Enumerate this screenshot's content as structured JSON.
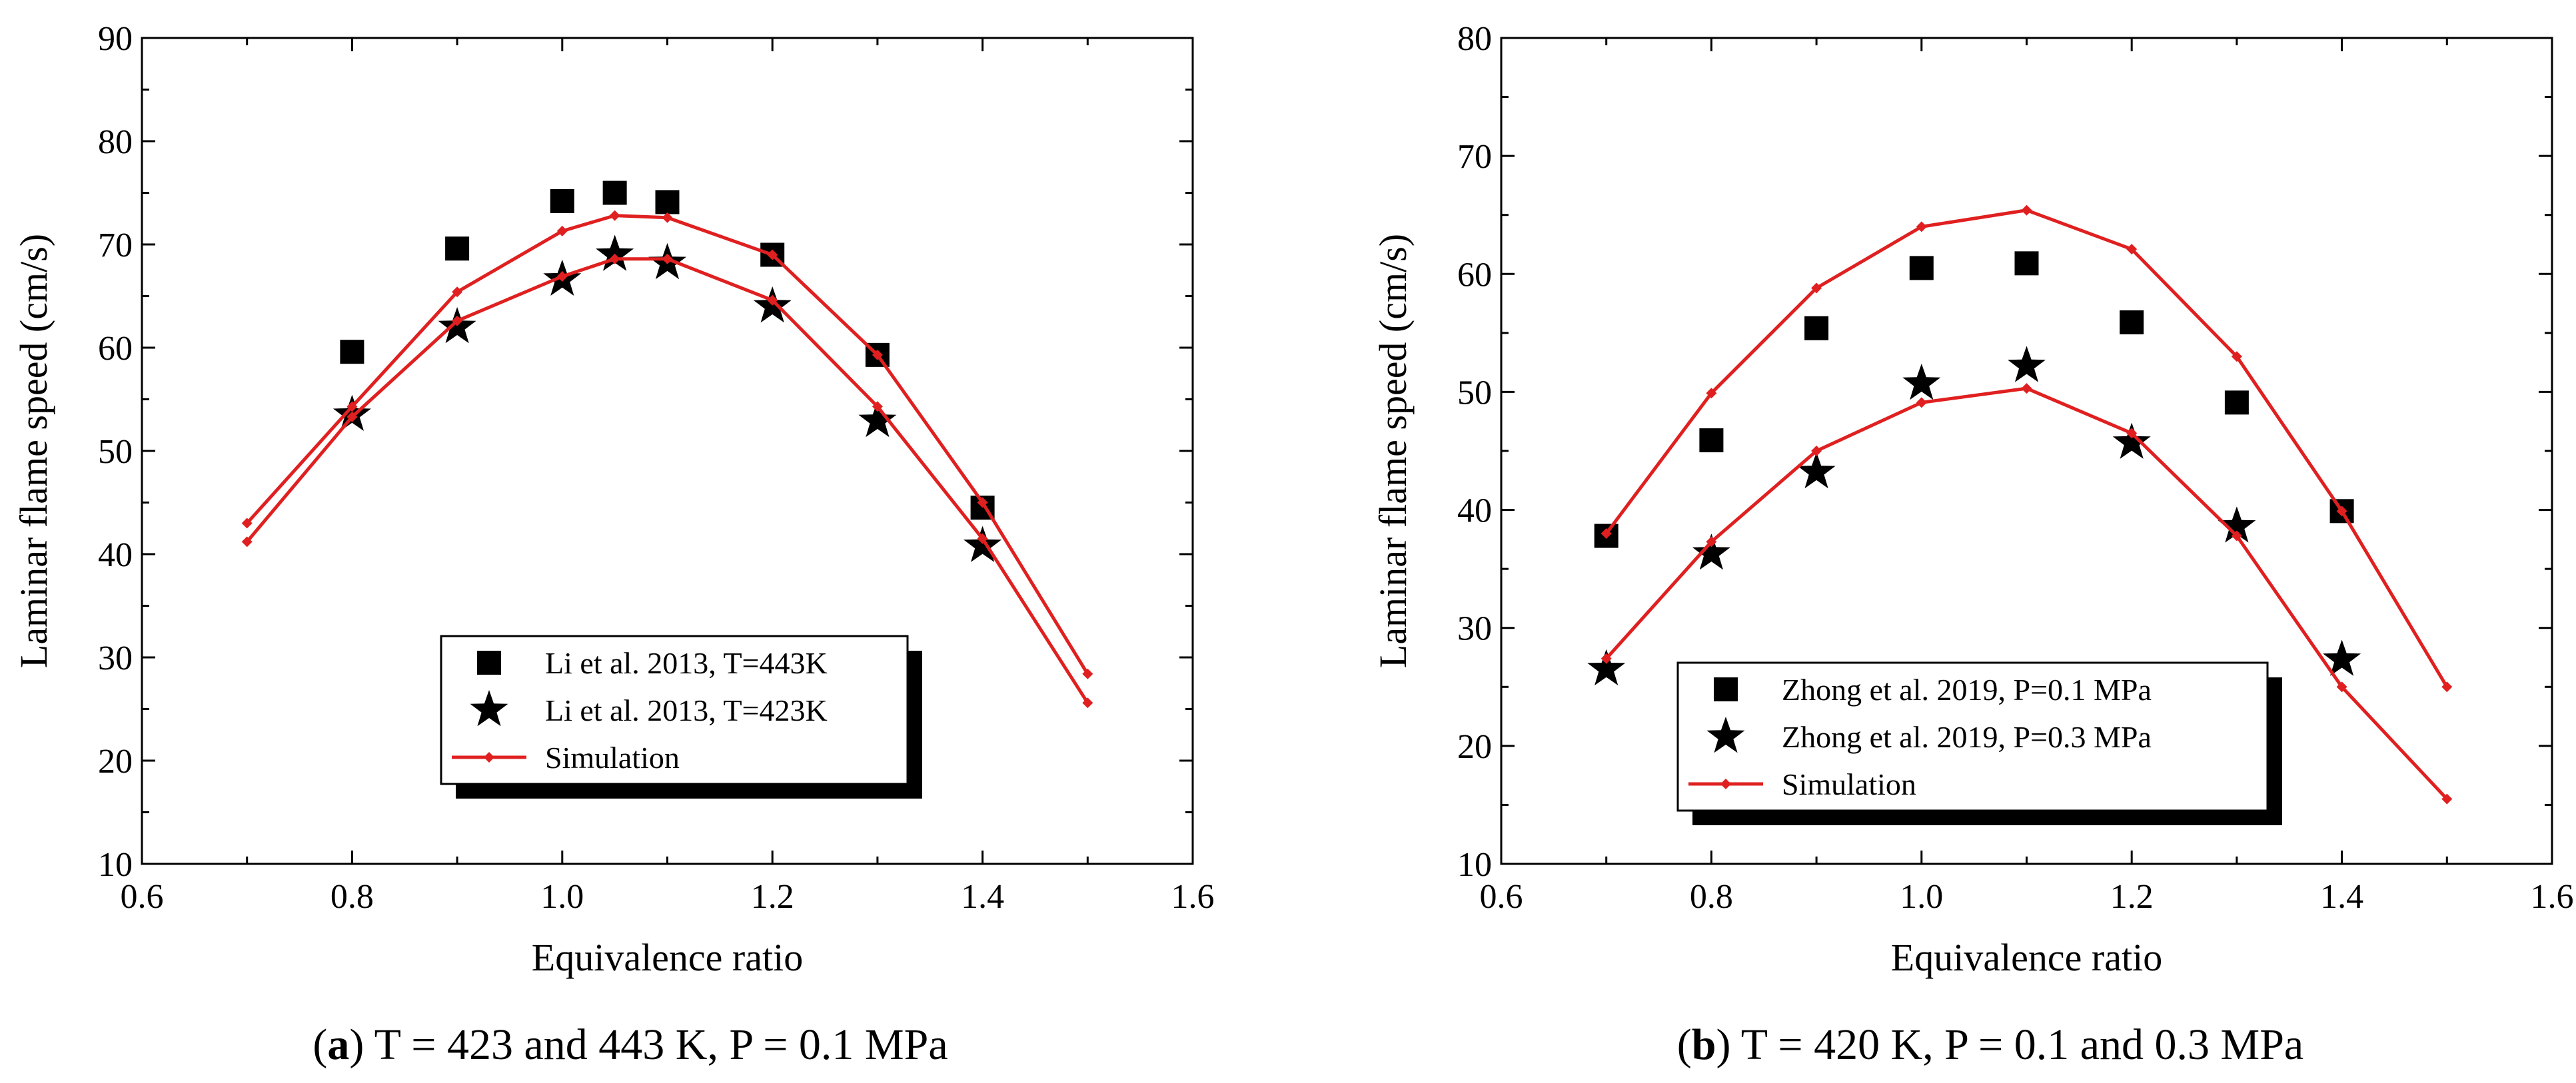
{
  "chart_data": [
    {
      "type": "scatter",
      "panel": "a",
      "xlabel": "Equivalence ratio",
      "ylabel": "Laminar flame speed (cm/s)",
      "xlim": [
        0.6,
        1.6
      ],
      "ylim": [
        10,
        90
      ],
      "xticks": [
        "0.6",
        "0.8",
        "1.0",
        "1.2",
        "1.4",
        "1.6"
      ],
      "yticks": [
        "10",
        "20",
        "30",
        "40",
        "50",
        "60",
        "70",
        "80",
        "90"
      ],
      "caption_label": "a",
      "caption_text": " T = 423 and 443 K, P = 0.1 MPa",
      "legend_position": "bottom-center",
      "series": [
        {
          "name": "Li et al. 2013, T=443K",
          "marker": "square",
          "color": "#000000",
          "x": [
            0.8,
            0.9,
            1.0,
            1.05,
            1.1,
            1.2,
            1.3,
            1.4
          ],
          "y": [
            59.6,
            69.6,
            74.2,
            75.0,
            74.1,
            69.0,
            59.3,
            44.5
          ]
        },
        {
          "name": "Li et al. 2013, T=423K",
          "marker": "star",
          "color": "#000000",
          "x": [
            0.8,
            0.9,
            1.0,
            1.05,
            1.1,
            1.2,
            1.3,
            1.4
          ],
          "y": [
            53.5,
            62.0,
            66.6,
            69.0,
            68.2,
            64.0,
            52.9,
            40.8
          ]
        },
        {
          "name": "Simulation",
          "marker": "line-diamond",
          "color": "#e02020",
          "x": [
            0.7,
            0.8,
            0.9,
            1.0,
            1.05,
            1.1,
            1.2,
            1.3,
            1.4,
            1.5
          ],
          "y": [
            43.0,
            54.3,
            65.4,
            71.3,
            72.8,
            72.6,
            69.0,
            59.3,
            45.0,
            28.4
          ]
        },
        {
          "name": "",
          "marker": "line-diamond",
          "color": "#e02020",
          "legend": false,
          "x": [
            0.7,
            0.8,
            0.9,
            1.0,
            1.05,
            1.1,
            1.2,
            1.3,
            1.4,
            1.5
          ],
          "y": [
            41.2,
            53.3,
            62.6,
            66.9,
            68.6,
            68.6,
            64.6,
            54.3,
            41.5,
            25.6
          ]
        }
      ]
    },
    {
      "type": "scatter",
      "panel": "b",
      "xlabel": "Equivalence ratio",
      "ylabel": "Laminar flame speed (cm/s)",
      "xlim": [
        0.6,
        1.6
      ],
      "ylim": [
        10,
        80
      ],
      "xticks": [
        "0.6",
        "0.8",
        "1.0",
        "1.2",
        "1.4",
        "1.6"
      ],
      "yticks": [
        "10",
        "20",
        "30",
        "40",
        "50",
        "60",
        "70",
        "80"
      ],
      "caption_label": "b",
      "caption_text": " T = 420 K, P = 0.1 and 0.3 MPa",
      "legend_position": "bottom-left",
      "series": [
        {
          "name": "Zhong et al. 2019, P=0.1 MPa",
          "marker": "square",
          "color": "#000000",
          "x": [
            0.7,
            0.8,
            0.9,
            1.0,
            1.1,
            1.2,
            1.3,
            1.4
          ],
          "y": [
            37.8,
            45.9,
            55.4,
            60.5,
            60.9,
            55.9,
            49.1,
            39.9
          ]
        },
        {
          "name": "Zhong et al. 2019, P=0.3 MPa",
          "marker": "star",
          "color": "#000000",
          "x": [
            0.7,
            0.8,
            0.9,
            1.0,
            1.1,
            1.2,
            1.3,
            1.4
          ],
          "y": [
            26.5,
            36.3,
            43.2,
            50.7,
            52.2,
            45.7,
            38.6,
            27.3
          ]
        },
        {
          "name": "Simulation",
          "marker": "line-diamond",
          "color": "#e02020",
          "x": [
            0.7,
            0.8,
            0.9,
            1.0,
            1.1,
            1.2,
            1.3,
            1.4,
            1.5
          ],
          "y": [
            38.0,
            49.9,
            58.8,
            64.0,
            65.4,
            62.1,
            53.0,
            39.9,
            25.0
          ]
        },
        {
          "name": "",
          "marker": "line-diamond",
          "color": "#e02020",
          "legend": false,
          "x": [
            0.7,
            0.8,
            0.9,
            1.0,
            1.1,
            1.2,
            1.3,
            1.4,
            1.5
          ],
          "y": [
            27.4,
            37.3,
            45.0,
            49.1,
            50.3,
            46.5,
            37.8,
            25.0,
            15.5
          ]
        }
      ]
    }
  ]
}
